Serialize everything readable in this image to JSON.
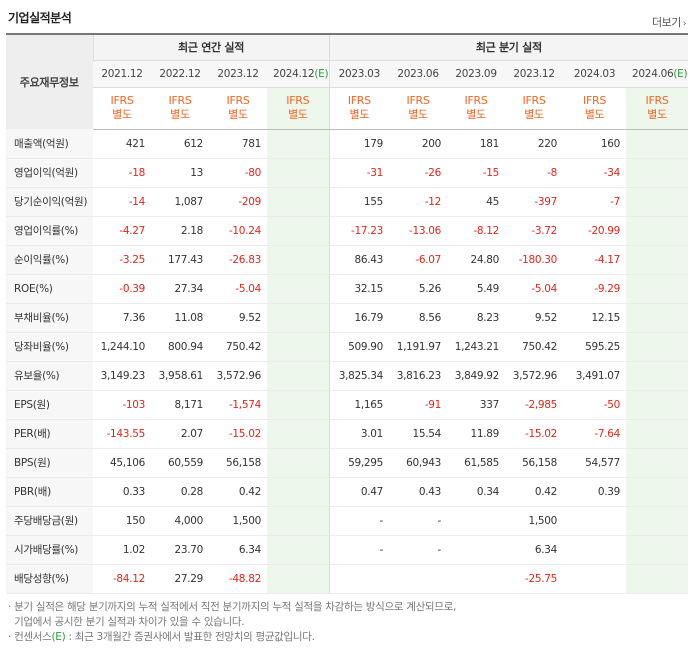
{
  "title": "기업실적분석",
  "more_label": "더보기",
  "more_arrow": "›",
  "row_header_label": "주요재무정보",
  "groups": {
    "annual": "최근 연간 실적",
    "quarter": "최근 분기 실적"
  },
  "periods": [
    "2021.12",
    "2022.12",
    "2023.12",
    "2024.12",
    "2023.03",
    "2023.06",
    "2023.09",
    "2023.12",
    "2024.03",
    "2024.06"
  ],
  "estimate_suffix": "(E)",
  "ifrs": "IFRS",
  "ifrs_sub": "별도",
  "rows": [
    {
      "label": "매출액(억원)",
      "values": [
        "421",
        "612",
        "781",
        "",
        "179",
        "200",
        "181",
        "220",
        "160",
        ""
      ]
    },
    {
      "label": "영업이익(억원)",
      "values": [
        "-18",
        "13",
        "-80",
        "",
        "-31",
        "-26",
        "-15",
        "-8",
        "-34",
        ""
      ]
    },
    {
      "label": "당기순이익(억원)",
      "values": [
        "-14",
        "1,087",
        "-209",
        "",
        "155",
        "-12",
        "45",
        "-397",
        "-7",
        ""
      ]
    },
    {
      "label": "영업이익률(%)",
      "values": [
        "-4.27",
        "2.18",
        "-10.24",
        "",
        "-17.23",
        "-13.06",
        "-8.12",
        "-3.72",
        "-20.99",
        ""
      ]
    },
    {
      "label": "순이익률(%)",
      "values": [
        "-3.25",
        "177.43",
        "-26.83",
        "",
        "86.43",
        "-6.07",
        "24.80",
        "-180.30",
        "-4.17",
        ""
      ]
    },
    {
      "label": "ROE(%)",
      "values": [
        "-0.39",
        "27.34",
        "-5.04",
        "",
        "32.15",
        "5.26",
        "5.49",
        "-5.04",
        "-9.29",
        ""
      ]
    },
    {
      "label": "부채비율(%)",
      "values": [
        "7.36",
        "11.08",
        "9.52",
        "",
        "16.79",
        "8.56",
        "8.23",
        "9.52",
        "12.15",
        ""
      ]
    },
    {
      "label": "당좌비율(%)",
      "values": [
        "1,244.10",
        "800.94",
        "750.42",
        "",
        "509.90",
        "1,191.97",
        "1,243.21",
        "750.42",
        "595.25",
        ""
      ]
    },
    {
      "label": "유보율(%)",
      "values": [
        "3,149.23",
        "3,958.61",
        "3,572.96",
        "",
        "3,825.34",
        "3,816.23",
        "3,849.92",
        "3,572.96",
        "3,491.07",
        ""
      ]
    },
    {
      "label": "EPS(원)",
      "values": [
        "-103",
        "8,171",
        "-1,574",
        "",
        "1,165",
        "-91",
        "337",
        "-2,985",
        "-50",
        ""
      ]
    },
    {
      "label": "PER(배)",
      "values": [
        "-143.55",
        "2.07",
        "-15.02",
        "",
        "3.01",
        "15.54",
        "11.89",
        "-15.02",
        "-7.64",
        ""
      ]
    },
    {
      "label": "BPS(원)",
      "values": [
        "45,106",
        "60,559",
        "56,158",
        "",
        "59,295",
        "60,943",
        "61,585",
        "56,158",
        "54,577",
        ""
      ]
    },
    {
      "label": "PBR(배)",
      "values": [
        "0.33",
        "0.28",
        "0.42",
        "",
        "0.47",
        "0.43",
        "0.34",
        "0.42",
        "0.39",
        ""
      ]
    },
    {
      "label": "주당배당금(원)",
      "values": [
        "150",
        "4,000",
        "1,500",
        "",
        "-",
        "-",
        "",
        "1,500",
        "",
        ""
      ]
    },
    {
      "label": "시가배당률(%)",
      "values": [
        "1.02",
        "23.70",
        "6.34",
        "",
        "-",
        "-",
        "",
        "6.34",
        "",
        ""
      ]
    },
    {
      "label": "배당성향(%)",
      "values": [
        "-84.12",
        "27.29",
        "-48.82",
        "",
        "",
        "",
        "",
        "-25.75",
        "",
        ""
      ]
    }
  ],
  "notes": {
    "line1": "· 분기 실적은 해당 분기까지의 누적 실적에서 직전 분기까지의 누적 실적을 차감하는 방식으로 계산되므로,",
    "line2": "  기업에서 공시한 분기 실적과 차이가 있을 수 있습니다.",
    "line3_prefix": "· 컨센서스",
    "line3_e": "(E)",
    "line3_rest": " : 최근 3개월간 증권사에서 발표한 전망치의 평균값입니다."
  },
  "colors": {
    "negative": "#e1251b",
    "ifrs": "#f26522",
    "estimate": "#2a9d3a",
    "estimate_bg": "#eef7ec"
  }
}
